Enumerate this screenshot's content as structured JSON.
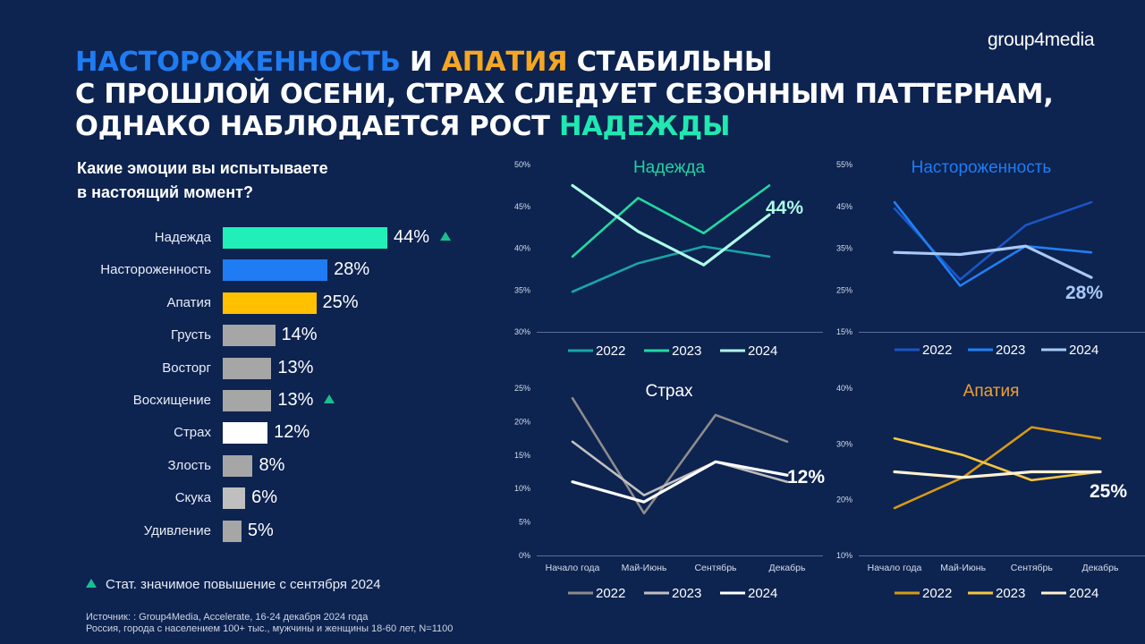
{
  "logo": "group4media",
  "headline": {
    "lines": [
      [
        {
          "text": "НАСТОРОЖЕННОСТЬ",
          "color": "#1f7cf2"
        },
        {
          "text": " И ",
          "color": "#ffffff"
        },
        {
          "text": "АПАТИЯ",
          "color": "#f5a623"
        },
        {
          "text": " СТАБИЛЬНЫ",
          "color": "#ffffff"
        }
      ],
      [
        {
          "text": "С ПРОШЛОЙ ОСЕНИ, СТРАХ СЛЕДУЕТ СЕЗОННЫМ ПАТТЕРНАМ,",
          "color": "#ffffff"
        }
      ],
      [
        {
          "text": "ОДНАКО НАБЛЮДАЕТСЯ РОСТ ",
          "color": "#ffffff"
        },
        {
          "text": "НАДЕЖДЫ",
          "color": "#20e8b0"
        }
      ]
    ]
  },
  "question": {
    "line1": "Какие эмоции вы испытываете",
    "line2": "в настоящий момент?"
  },
  "footnote": "Стат. значимое повышение с сентября 2024",
  "source": {
    "line1": "Источник: : Group4Media, Accelerate, 16-24 декабря 2024 года",
    "line2": "Россия, города с населением 100+ тыс., мужчины и женщины 18-60 лет, N=1100"
  },
  "chart_data": [
    {
      "type": "bar",
      "orientation": "horizontal",
      "title": "Какие эмоции вы испытываете в настоящий момент?",
      "value_suffix": "%",
      "categories": [
        "Надежда",
        "Настороженность",
        "Апатия",
        "Грусть",
        "Восторг",
        "Восхищение",
        "Страх",
        "Злость",
        "Скука",
        "Удивление"
      ],
      "values": [
        44,
        28,
        25,
        14,
        13,
        13,
        12,
        8,
        6,
        5
      ],
      "colors": [
        "#20f0b8",
        "#1f7cf2",
        "#ffc000",
        "#a6a6a6",
        "#a6a6a6",
        "#a6a6a6",
        "#ffffff",
        "#a6a6a6",
        "#bfbfbf",
        "#a6a6a6"
      ],
      "significant_increase": [
        "Надежда",
        "Восхищение"
      ]
    },
    {
      "type": "line",
      "title": "Надежда",
      "title_color": "#20d3a0",
      "x": [
        "Начало года",
        "Май-Июнь",
        "Сентябрь",
        "Декабрь"
      ],
      "ylim": [
        30,
        50
      ],
      "yticks": [
        "30%",
        "35%",
        "40%",
        "45%",
        "50%"
      ],
      "series": [
        {
          "name": "2022",
          "values": [
            34.8,
            38.2,
            40.2,
            39.0
          ],
          "color": "#1aa5a5"
        },
        {
          "name": "2023",
          "values": [
            39.0,
            46.0,
            41.8,
            47.5
          ],
          "color": "#22d9a0"
        },
        {
          "name": "2024",
          "values": [
            47.5,
            42.0,
            38.0,
            44.0
          ],
          "color": "#aefbe8"
        }
      ],
      "end_label": "44%",
      "end_label_color": "#aefbe8"
    },
    {
      "type": "line",
      "title": "Настороженность",
      "title_color": "#1f7cf2",
      "x": [
        "Начало года",
        "Май-Июнь",
        "Сентябрь",
        "Декабрь"
      ],
      "ylim": [
        15,
        55
      ],
      "yticks": [
        "15%",
        "25%",
        "35%",
        "45%",
        "55%"
      ],
      "series": [
        {
          "name": "2022",
          "values": [
            44.5,
            27.5,
            40.5,
            46.0
          ],
          "color": "#1a56c4"
        },
        {
          "name": "2023",
          "values": [
            46.0,
            26.0,
            35.5,
            34.0
          ],
          "color": "#2080f5"
        },
        {
          "name": "2024",
          "values": [
            34.0,
            33.5,
            35.5,
            28.0
          ],
          "color": "#a9c8f5"
        }
      ],
      "end_label": "28%",
      "end_label_color": "#a9c8f5"
    },
    {
      "type": "line",
      "title": "Страх",
      "title_color": "#ffffff",
      "x": [
        "Начало года",
        "Май-Июнь",
        "Сентябрь",
        "Декабрь"
      ],
      "ylim": [
        0,
        25
      ],
      "yticks": [
        "0%",
        "5%",
        "10%",
        "15%",
        "20%",
        "25%"
      ],
      "series": [
        {
          "name": "2022",
          "values": [
            23.5,
            6.3,
            21.0,
            17.0
          ],
          "color": "#8c8c8c"
        },
        {
          "name": "2023",
          "values": [
            17.0,
            9.0,
            14.0,
            11.0
          ],
          "color": "#bfbfbf"
        },
        {
          "name": "2024",
          "values": [
            11.0,
            8.0,
            14.0,
            12.0
          ],
          "color": "#ffffff"
        }
      ],
      "end_label": "12%",
      "end_label_color": "#ffffff"
    },
    {
      "type": "line",
      "title": "Апатия",
      "title_color": "#f0a030",
      "x": [
        "Начало года",
        "Май-Июнь",
        "Сентябрь",
        "Декабрь"
      ],
      "ylim": [
        10,
        40
      ],
      "yticks": [
        "10%",
        "20%",
        "30%",
        "40%"
      ],
      "series": [
        {
          "name": "2022",
          "values": [
            18.5,
            24.0,
            33.0,
            31.0
          ],
          "color": "#d89a12"
        },
        {
          "name": "2023",
          "values": [
            31.0,
            28.0,
            23.5,
            25.0
          ],
          "color": "#f5c542"
        },
        {
          "name": "2024",
          "values": [
            25.0,
            24.0,
            25.0,
            25.0
          ],
          "color": "#fff2d0"
        }
      ],
      "end_label": "25%",
      "end_label_color": "#ffffff"
    }
  ]
}
